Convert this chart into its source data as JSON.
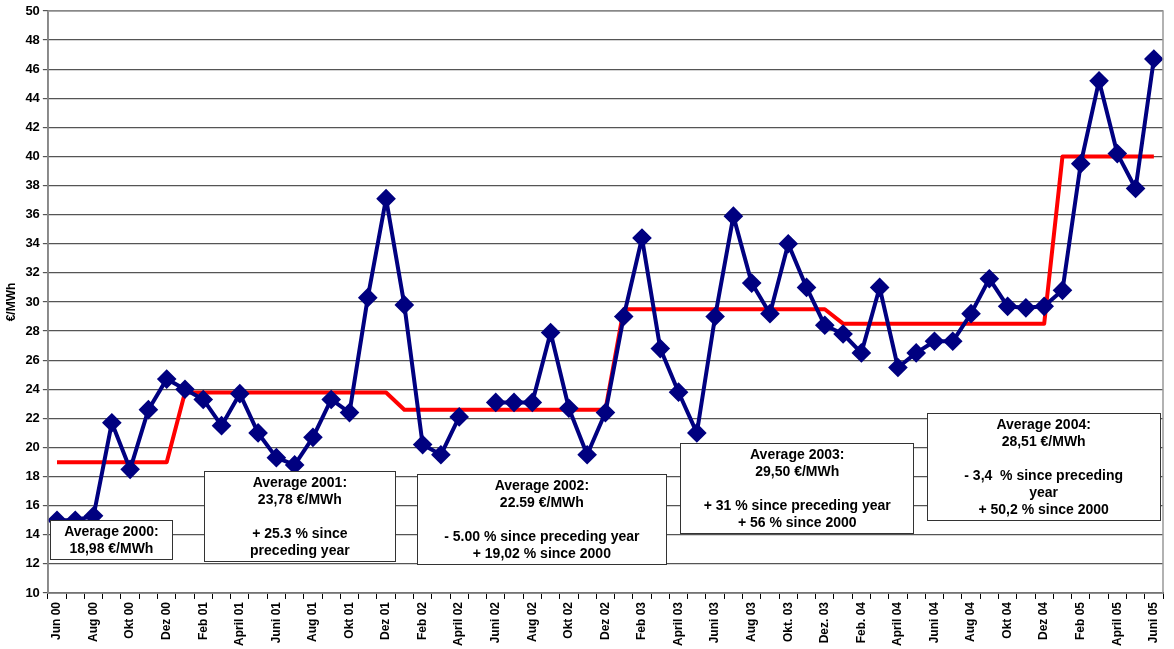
{
  "chart_data": {
    "type": "line",
    "ylabel": "€/MWh",
    "categories": [
      "Jun 00",
      null,
      "Aug 00",
      null,
      "Okt 00",
      null,
      "Dez 00",
      null,
      "Feb 01",
      null,
      "April 01",
      null,
      "Juni 01",
      null,
      "Aug 01",
      null,
      "Okt 01",
      null,
      "Dez 01",
      null,
      "Feb 02",
      null,
      "April 02",
      null,
      "Juni 02",
      null,
      "Aug 02",
      null,
      "Okt 02",
      null,
      "Dez 02",
      null,
      "Feb 03",
      null,
      "April 03",
      null,
      "Juni 03",
      null,
      "Aug 03",
      null,
      "Okt. 03",
      null,
      "Dez. 03",
      null,
      "Feb. 04",
      null,
      "April 04",
      null,
      "Juni 04",
      null,
      "Aug 04",
      null,
      "Okt 04",
      null,
      "Dez 04",
      null,
      "Feb 05",
      null,
      "April 05",
      null,
      "Juni 05"
    ],
    "series": [
      {
        "color": "#000080",
        "marker": "diamond",
        "values": [
          15.0,
          15.0,
          15.3,
          21.7,
          18.5,
          22.6,
          24.7,
          24.0,
          23.3,
          21.5,
          23.7,
          21.0,
          19.3,
          18.8,
          20.7,
          23.3,
          22.4,
          30.3,
          37.1,
          29.8,
          20.2,
          19.5,
          22.1,
          null,
          23.1,
          23.1,
          23.1,
          27.9,
          22.7,
          19.5,
          22.4,
          29.0,
          34.4,
          26.8,
          23.8,
          21.0,
          29.0,
          35.9,
          31.3,
          29.2,
          34.0,
          31.0,
          28.4,
          27.8,
          26.5,
          31.0,
          25.5,
          26.5,
          27.3,
          27.3,
          29.2,
          31.6,
          29.7,
          29.6,
          29.7,
          30.8,
          39.5,
          45.2,
          40.2,
          37.8,
          46.7
        ]
      },
      {
        "color": "#ff0000",
        "marker": "none",
        "values": [
          18.98,
          18.98,
          18.98,
          18.98,
          18.98,
          18.98,
          18.98,
          23.78,
          23.78,
          23.78,
          23.78,
          23.78,
          23.78,
          23.78,
          23.78,
          23.78,
          23.78,
          23.78,
          23.78,
          22.59,
          22.59,
          22.59,
          22.59,
          22.59,
          22.59,
          22.59,
          22.59,
          22.59,
          22.59,
          22.59,
          22.59,
          29.5,
          29.5,
          29.5,
          29.5,
          29.5,
          29.5,
          29.5,
          29.5,
          29.5,
          29.5,
          29.5,
          29.5,
          28.51,
          28.51,
          28.51,
          28.51,
          28.51,
          28.51,
          28.51,
          28.51,
          28.51,
          28.51,
          28.51,
          28.51,
          40,
          40,
          40,
          40,
          40,
          40
        ]
      }
    ],
    "ylim": [
      10,
      50
    ],
    "yticks": [
      10,
      12,
      14,
      16,
      18,
      20,
      22,
      24,
      26,
      28,
      30,
      32,
      34,
      36,
      38,
      40,
      42,
      44,
      46,
      48,
      50
    ],
    "grid": "y",
    "legend": false,
    "line_style": "solid",
    "annotations": [
      "Average 2000:\n18,98 €/MWh",
      "Average 2001:\n23,78 €/MWh\n\n+ 25.3 % since\npreceding year",
      "Average 2002:\n22.59 €/MWh\n\n- 5.00 % since preceding year\n+ 19,02 % since 2000",
      "Average 2003:\n29,50 €/MWh\n\n+ 31 % since preceding year\n+ 56 % since 2000",
      "Average 2004:\n28,51 €/MWh\n\n- 3,4  % since preceding\nyear\n+ 50,2 % since 2000"
    ]
  }
}
